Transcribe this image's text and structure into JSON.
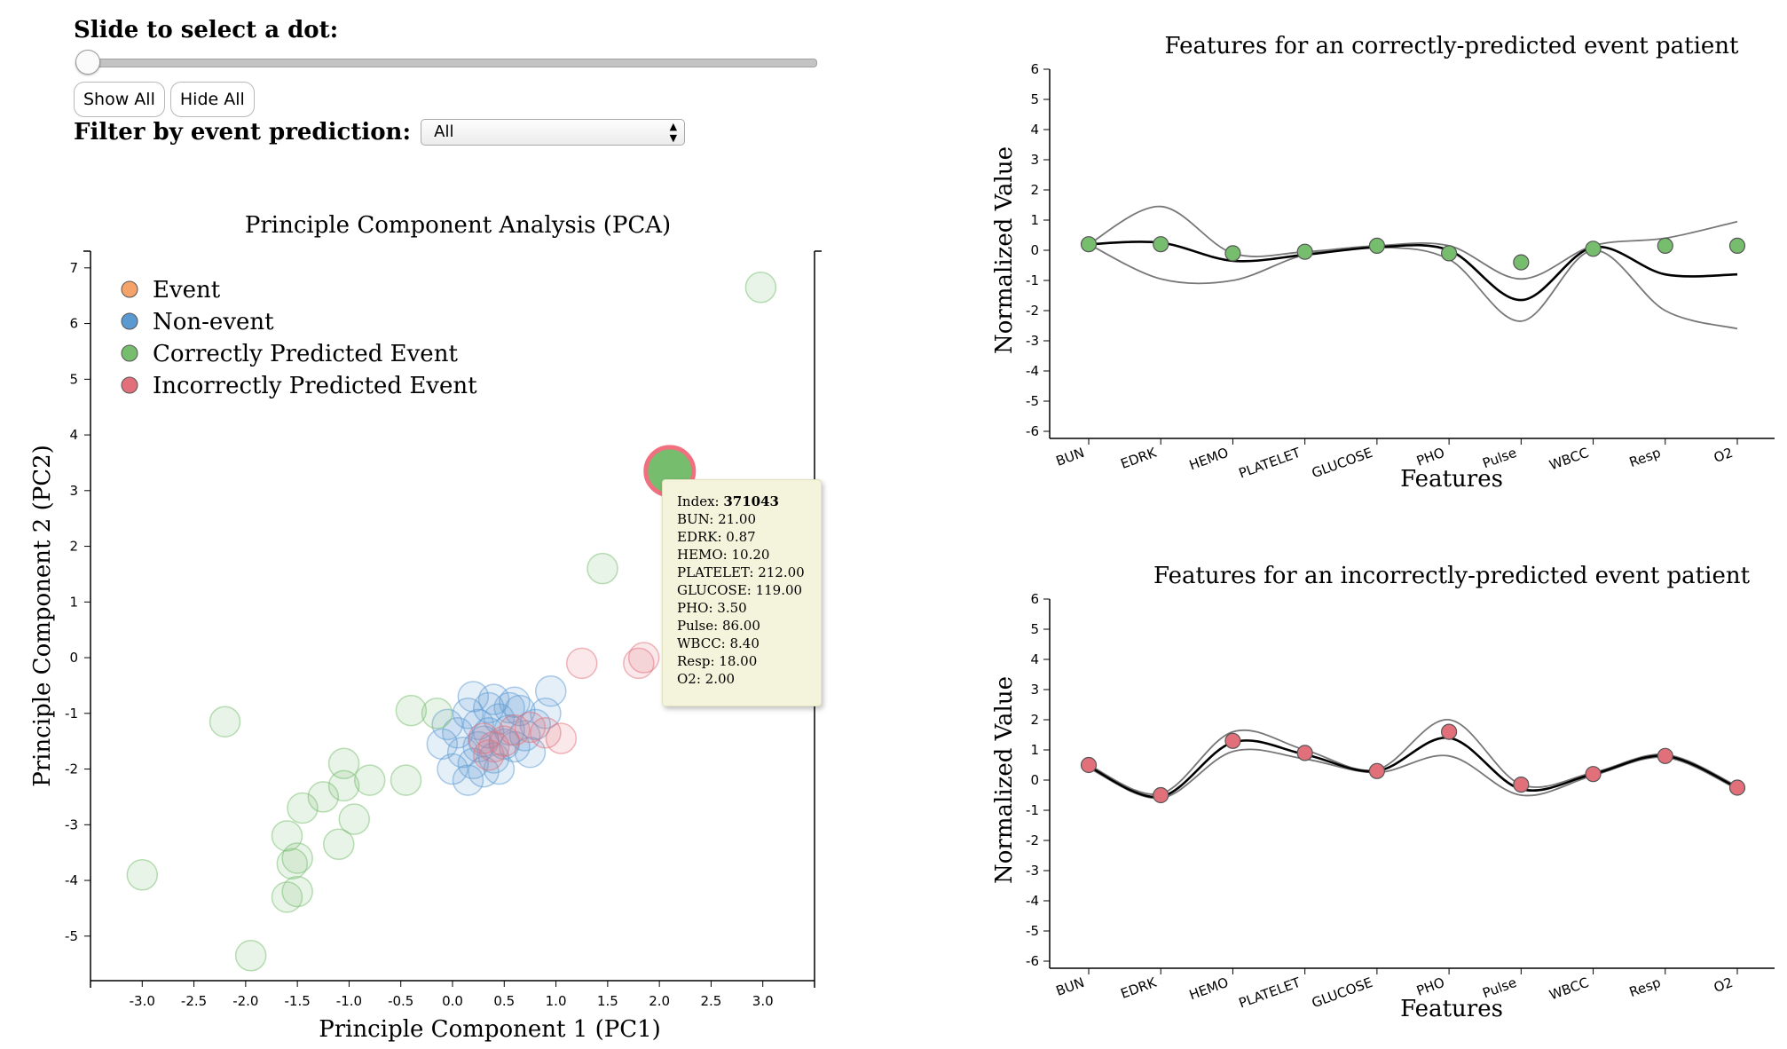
{
  "controls": {
    "slider_label": "Slide to select a dot:",
    "slider_value": 0,
    "show_all": "Show All",
    "hide_all": "Hide All",
    "filter_label": "Filter by event prediction:",
    "filter_value": "All"
  },
  "tooltip": {
    "index_label": "Index:",
    "index_value": "371043",
    "lines": [
      "BUN: 21.00",
      "EDRK: 0.87",
      "HEMO: 10.20",
      "PLATELET: 212.00",
      "GLUCOSE: 119.00",
      "PHO: 3.50",
      "Pulse: 86.00",
      "WBCC: 8.40",
      "Resp: 18.00",
      "O2: 2.00"
    ]
  },
  "colors": {
    "event": "#f4a46a",
    "non_event": "#5b9ad1",
    "correct": "#76bd6e",
    "incorrect": "#e1707a",
    "highlight_ring": "#f07080"
  },
  "chart_data": [
    {
      "type": "scatter",
      "title": "Principle Component Analysis (PCA)",
      "xlabel": "Principle Component 1 (PC1)",
      "ylabel": "Principle Component 2 (PC2)",
      "xlim": [
        -3.5,
        3.5
      ],
      "ylim": [
        -5.8,
        7.3
      ],
      "xticks": [
        -3.0,
        -2.5,
        -2.0,
        -1.5,
        -1.0,
        -0.5,
        0.0,
        0.5,
        1.0,
        1.5,
        2.0,
        2.5,
        3.0
      ],
      "yticks": [
        -5,
        -4,
        -3,
        -2,
        -1,
        0,
        1,
        2,
        3,
        4,
        5,
        6,
        7
      ],
      "legend": {
        "placement": "top-left",
        "entries": [
          {
            "label": "Event",
            "color": "#f4a46a"
          },
          {
            "label": "Non-event",
            "color": "#5b9ad1"
          },
          {
            "label": "Correctly Predicted Event",
            "color": "#76bd6e"
          },
          {
            "label": "Incorrectly Predicted Event",
            "color": "#e1707a"
          }
        ]
      },
      "highlighted": {
        "x": 2.1,
        "y": 3.35,
        "group": "correct"
      },
      "series": [
        {
          "name": "Non-event",
          "group": "non_event",
          "points": [
            [
              0.15,
              -1.0
            ],
            [
              0.25,
              -1.2
            ],
            [
              0.35,
              -0.9
            ],
            [
              0.45,
              -1.1
            ],
            [
              0.55,
              -1.3
            ],
            [
              0.65,
              -0.95
            ],
            [
              0.05,
              -1.35
            ],
            [
              0.3,
              -1.5
            ],
            [
              0.5,
              -1.55
            ],
            [
              0.7,
              -1.4
            ],
            [
              0.1,
              -1.7
            ],
            [
              0.2,
              -1.9
            ],
            [
              0.4,
              -1.8
            ],
            [
              0.6,
              -1.6
            ],
            [
              0.0,
              -2.0
            ],
            [
              0.3,
              -2.05
            ],
            [
              0.8,
              -1.2
            ],
            [
              0.9,
              -1.0
            ],
            [
              0.95,
              -0.6
            ],
            [
              0.6,
              -0.8
            ],
            [
              0.4,
              -0.75
            ],
            [
              0.2,
              -0.7
            ],
            [
              -0.05,
              -1.2
            ],
            [
              0.75,
              -1.7
            ],
            [
              0.15,
              -2.2
            ],
            [
              0.45,
              -2.0
            ],
            [
              -0.1,
              -1.55
            ],
            [
              0.55,
              -0.9
            ],
            [
              0.35,
              -1.35
            ],
            [
              0.25,
              -1.6
            ]
          ]
        },
        {
          "name": "Correctly Predicted Event",
          "group": "correct",
          "points": [
            [
              2.98,
              6.65
            ],
            [
              1.45,
              1.6
            ],
            [
              -0.4,
              -0.95
            ],
            [
              -0.15,
              -1.0
            ],
            [
              -2.2,
              -1.15
            ],
            [
              -1.05,
              -1.9
            ],
            [
              -0.45,
              -2.2
            ],
            [
              -0.8,
              -2.2
            ],
            [
              -1.25,
              -2.5
            ],
            [
              -1.05,
              -2.3
            ],
            [
              -1.45,
              -2.7
            ],
            [
              -0.95,
              -2.9
            ],
            [
              -1.6,
              -3.2
            ],
            [
              -1.1,
              -3.35
            ],
            [
              -1.5,
              -3.6
            ],
            [
              -1.55,
              -3.7
            ],
            [
              -3.0,
              -3.9
            ],
            [
              -1.5,
              -4.2
            ],
            [
              -1.6,
              -4.3
            ],
            [
              -1.95,
              -5.35
            ]
          ]
        },
        {
          "name": "Incorrectly Predicted Event",
          "group": "incorrect",
          "points": [
            [
              1.25,
              -0.1
            ],
            [
              1.8,
              -0.1
            ],
            [
              1.85,
              0.0
            ],
            [
              0.3,
              -1.45
            ],
            [
              0.4,
              -1.6
            ],
            [
              0.5,
              -1.5
            ],
            [
              0.6,
              -1.3
            ],
            [
              0.75,
              -1.25
            ],
            [
              0.9,
              -1.35
            ],
            [
              1.05,
              -1.45
            ],
            [
              0.35,
              -1.75
            ]
          ]
        }
      ]
    },
    {
      "type": "line",
      "title": "Features for an correctly-predicted event patient",
      "xlabel": "Features",
      "ylabel": "Normalized Value",
      "categories": [
        "BUN",
        "EDRK",
        "HEMO",
        "PLATELET",
        "GLUCOSE",
        "PHO",
        "Pulse",
        "WBCC",
        "Resp",
        "O2"
      ],
      "ylim": [
        -6,
        6
      ],
      "yticks": [
        -6,
        -5,
        -4,
        -3,
        -2,
        -1,
        0,
        1,
        2,
        3,
        4,
        5,
        6
      ],
      "point_color": "#76bd6e",
      "points": [
        0.2,
        0.2,
        -0.1,
        -0.05,
        0.15,
        -0.1,
        -0.4,
        0.05,
        0.15,
        0.15
      ],
      "mean": [
        0.2,
        0.25,
        -0.35,
        -0.15,
        0.1,
        0.0,
        -1.65,
        0.1,
        -0.8,
        -0.8
      ],
      "upper": [
        0.2,
        1.45,
        -0.1,
        -0.05,
        0.15,
        0.15,
        -0.95,
        0.15,
        0.4,
        0.95
      ],
      "lower": [
        0.2,
        -0.95,
        -1.0,
        -0.15,
        0.1,
        -0.3,
        -2.35,
        0.0,
        -2.0,
        -2.6
      ]
    },
    {
      "type": "line",
      "title": "Features for an incorrectly-predicted event patient",
      "xlabel": "Features",
      "ylabel": "Normalized Value",
      "categories": [
        "BUN",
        "EDRK",
        "HEMO",
        "PLATELET",
        "GLUCOSE",
        "PHO",
        "Pulse",
        "WBCC",
        "Resp",
        "O2"
      ],
      "ylim": [
        -6,
        6
      ],
      "yticks": [
        -6,
        -5,
        -4,
        -3,
        -2,
        -1,
        0,
        1,
        2,
        3,
        4,
        5,
        6
      ],
      "point_color": "#e1707a",
      "points": [
        0.5,
        -0.5,
        1.3,
        0.9,
        0.3,
        1.6,
        -0.15,
        0.2,
        0.8,
        -0.25
      ],
      "mean": [
        0.45,
        -0.55,
        1.25,
        0.85,
        0.3,
        1.4,
        -0.3,
        0.2,
        0.8,
        -0.25
      ],
      "upper": [
        0.5,
        -0.45,
        1.6,
        1.0,
        0.35,
        2.0,
        -0.15,
        0.25,
        0.85,
        -0.2
      ],
      "lower": [
        0.4,
        -0.6,
        0.95,
        0.7,
        0.25,
        0.8,
        -0.5,
        0.15,
        0.75,
        -0.3
      ]
    }
  ]
}
